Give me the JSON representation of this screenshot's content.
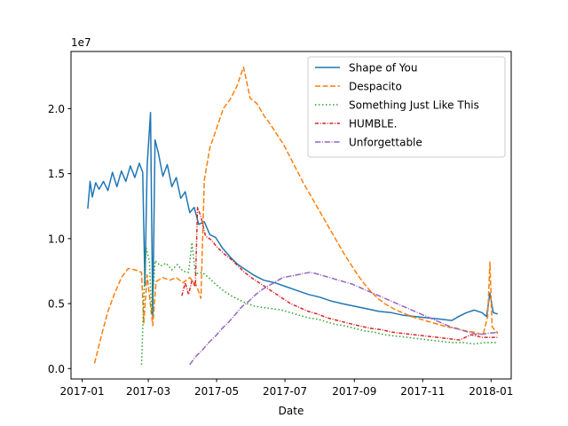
{
  "chart_data": {
    "type": "line",
    "xlabel": "Date",
    "ylabel": "",
    "offset_label": "1e7",
    "x_range": [
      "2016-12-22",
      "2018-01-19"
    ],
    "ylim": [
      -800000,
      24400000
    ],
    "x_ticks": [
      {
        "date": "2017-01-01",
        "label": "2017-01"
      },
      {
        "date": "2017-03-01",
        "label": "2017-03"
      },
      {
        "date": "2017-05-01",
        "label": "2017-05"
      },
      {
        "date": "2017-07-01",
        "label": "2017-07"
      },
      {
        "date": "2017-09-01",
        "label": "2017-09"
      },
      {
        "date": "2017-11-01",
        "label": "2017-11"
      },
      {
        "date": "2018-01-01",
        "label": "2018-01"
      }
    ],
    "y_ticks": [
      {
        "value": 0,
        "label": "0.0"
      },
      {
        "value": 5000000,
        "label": "0.5"
      },
      {
        "value": 10000000,
        "label": "1.0"
      },
      {
        "value": 15000000,
        "label": "1.5"
      },
      {
        "value": 20000000,
        "label": "2.0"
      }
    ],
    "legend_position": "upper-right",
    "series": [
      {
        "name": "Shape of You",
        "color": "#1f77b4",
        "dash": "solid",
        "points": [
          [
            "2017-01-06",
            12300000
          ],
          [
            "2017-01-08",
            14400000
          ],
          [
            "2017-01-10",
            13200000
          ],
          [
            "2017-01-13",
            14300000
          ],
          [
            "2017-01-16",
            13800000
          ],
          [
            "2017-01-20",
            14400000
          ],
          [
            "2017-01-24",
            13700000
          ],
          [
            "2017-01-28",
            15100000
          ],
          [
            "2017-02-01",
            14000000
          ],
          [
            "2017-02-05",
            15200000
          ],
          [
            "2017-02-09",
            14400000
          ],
          [
            "2017-02-13",
            15600000
          ],
          [
            "2017-02-17",
            14700000
          ],
          [
            "2017-02-21",
            15800000
          ],
          [
            "2017-02-24",
            15100000
          ],
          [
            "2017-02-26",
            6400000
          ],
          [
            "2017-02-28",
            15600000
          ],
          [
            "2017-03-03",
            19700000
          ],
          [
            "2017-03-05",
            4000000
          ],
          [
            "2017-03-07",
            17600000
          ],
          [
            "2017-03-10",
            16600000
          ],
          [
            "2017-03-14",
            14800000
          ],
          [
            "2017-03-18",
            15700000
          ],
          [
            "2017-03-22",
            14000000
          ],
          [
            "2017-03-26",
            14700000
          ],
          [
            "2017-03-30",
            13100000
          ],
          [
            "2017-04-03",
            13600000
          ],
          [
            "2017-04-07",
            12000000
          ],
          [
            "2017-04-11",
            12400000
          ],
          [
            "2017-04-15",
            11100000
          ],
          [
            "2017-04-20",
            11300000
          ],
          [
            "2017-04-25",
            10300000
          ],
          [
            "2017-04-30",
            10100000
          ],
          [
            "2017-05-06",
            9300000
          ],
          [
            "2017-05-13",
            8600000
          ],
          [
            "2017-05-20",
            8000000
          ],
          [
            "2017-05-27",
            7600000
          ],
          [
            "2017-06-03",
            7200000
          ],
          [
            "2017-06-12",
            6800000
          ],
          [
            "2017-06-22",
            6600000
          ],
          [
            "2017-07-02",
            6300000
          ],
          [
            "2017-07-12",
            6000000
          ],
          [
            "2017-07-22",
            5700000
          ],
          [
            "2017-08-01",
            5500000
          ],
          [
            "2017-08-11",
            5200000
          ],
          [
            "2017-08-21",
            5000000
          ],
          [
            "2017-09-01",
            4800000
          ],
          [
            "2017-09-12",
            4600000
          ],
          [
            "2017-09-23",
            4400000
          ],
          [
            "2017-10-04",
            4300000
          ],
          [
            "2017-10-15",
            4100000
          ],
          [
            "2017-10-26",
            4000000
          ],
          [
            "2017-11-06",
            3900000
          ],
          [
            "2017-11-17",
            3800000
          ],
          [
            "2017-11-27",
            3700000
          ],
          [
            "2017-12-03",
            4000000
          ],
          [
            "2017-12-10",
            4300000
          ],
          [
            "2017-12-17",
            4500000
          ],
          [
            "2017-12-24",
            4300000
          ],
          [
            "2017-12-28",
            4000000
          ],
          [
            "2017-12-31",
            5800000
          ],
          [
            "2018-01-03",
            4300000
          ],
          [
            "2018-01-07",
            4200000
          ]
        ]
      },
      {
        "name": "Despacito",
        "color": "#ff7f0e",
        "dash": "dashed",
        "points": [
          [
            "2017-01-12",
            400000
          ],
          [
            "2017-01-18",
            2500000
          ],
          [
            "2017-01-24",
            4400000
          ],
          [
            "2017-01-30",
            5800000
          ],
          [
            "2017-02-05",
            7000000
          ],
          [
            "2017-02-11",
            7700000
          ],
          [
            "2017-02-17",
            7600000
          ],
          [
            "2017-02-23",
            7400000
          ],
          [
            "2017-02-25",
            3500000
          ],
          [
            "2017-02-28",
            7200000
          ],
          [
            "2017-03-05",
            3300000
          ],
          [
            "2017-03-08",
            6700000
          ],
          [
            "2017-03-14",
            7000000
          ],
          [
            "2017-03-20",
            6800000
          ],
          [
            "2017-03-26",
            7000000
          ],
          [
            "2017-04-01",
            6600000
          ],
          [
            "2017-04-07",
            7000000
          ],
          [
            "2017-04-13",
            6400000
          ],
          [
            "2017-04-17",
            5400000
          ],
          [
            "2017-04-20",
            14500000
          ],
          [
            "2017-04-25",
            17000000
          ],
          [
            "2017-05-01",
            18500000
          ],
          [
            "2017-05-07",
            20000000
          ],
          [
            "2017-05-13",
            20700000
          ],
          [
            "2017-05-19",
            21700000
          ],
          [
            "2017-05-25",
            23200000
          ],
          [
            "2017-05-31",
            20800000
          ],
          [
            "2017-06-06",
            20400000
          ],
          [
            "2017-06-12",
            19500000
          ],
          [
            "2017-06-18",
            18800000
          ],
          [
            "2017-06-24",
            18000000
          ],
          [
            "2017-06-30",
            17200000
          ],
          [
            "2017-07-06",
            16200000
          ],
          [
            "2017-07-12",
            15200000
          ],
          [
            "2017-07-18",
            14200000
          ],
          [
            "2017-07-24",
            13300000
          ],
          [
            "2017-07-30",
            12400000
          ],
          [
            "2017-08-05",
            11500000
          ],
          [
            "2017-08-11",
            10600000
          ],
          [
            "2017-08-17",
            9700000
          ],
          [
            "2017-08-23",
            8800000
          ],
          [
            "2017-08-29",
            8000000
          ],
          [
            "2017-09-04",
            7200000
          ],
          [
            "2017-09-10",
            6500000
          ],
          [
            "2017-09-16",
            5900000
          ],
          [
            "2017-09-22",
            5400000
          ],
          [
            "2017-09-28",
            5000000
          ],
          [
            "2017-10-06",
            4600000
          ],
          [
            "2017-10-14",
            4300000
          ],
          [
            "2017-10-22",
            4000000
          ],
          [
            "2017-10-30",
            3800000
          ],
          [
            "2017-11-07",
            3600000
          ],
          [
            "2017-11-15",
            3400000
          ],
          [
            "2017-11-23",
            3200000
          ],
          [
            "2017-12-01",
            3100000
          ],
          [
            "2017-12-09",
            2900000
          ],
          [
            "2017-12-17",
            2800000
          ],
          [
            "2017-12-25",
            2600000
          ],
          [
            "2017-12-29",
            4000000
          ],
          [
            "2017-12-31",
            8200000
          ],
          [
            "2018-01-02",
            3200000
          ],
          [
            "2018-01-07",
            2700000
          ]
        ]
      },
      {
        "name": "Something Just Like This",
        "color": "#2ca02c",
        "dash": "dotted",
        "points": [
          [
            "2017-02-23",
            300000
          ],
          [
            "2017-02-25",
            5500000
          ],
          [
            "2017-02-27",
            9300000
          ],
          [
            "2017-03-02",
            8300000
          ],
          [
            "2017-03-04",
            4200000
          ],
          [
            "2017-03-07",
            8300000
          ],
          [
            "2017-03-12",
            7900000
          ],
          [
            "2017-03-17",
            8100000
          ],
          [
            "2017-03-22",
            7600000
          ],
          [
            "2017-03-27",
            8000000
          ],
          [
            "2017-04-01",
            7500000
          ],
          [
            "2017-04-06",
            7400000
          ],
          [
            "2017-04-09",
            9700000
          ],
          [
            "2017-04-12",
            7300000
          ],
          [
            "2017-04-18",
            7400000
          ],
          [
            "2017-04-24",
            7000000
          ],
          [
            "2017-04-30",
            6500000
          ],
          [
            "2017-05-07",
            6000000
          ],
          [
            "2017-05-14",
            5600000
          ],
          [
            "2017-05-21",
            5300000
          ],
          [
            "2017-05-28",
            5000000
          ],
          [
            "2017-06-04",
            4800000
          ],
          [
            "2017-06-12",
            4700000
          ],
          [
            "2017-06-20",
            4600000
          ],
          [
            "2017-06-28",
            4500000
          ],
          [
            "2017-07-06",
            4300000
          ],
          [
            "2017-07-14",
            4100000
          ],
          [
            "2017-07-22",
            3900000
          ],
          [
            "2017-07-30",
            3800000
          ],
          [
            "2017-08-07",
            3600000
          ],
          [
            "2017-08-15",
            3400000
          ],
          [
            "2017-08-23",
            3300000
          ],
          [
            "2017-09-01",
            3100000
          ],
          [
            "2017-09-10",
            2900000
          ],
          [
            "2017-09-19",
            2800000
          ],
          [
            "2017-09-28",
            2600000
          ],
          [
            "2017-10-08",
            2500000
          ],
          [
            "2017-10-18",
            2400000
          ],
          [
            "2017-10-28",
            2300000
          ],
          [
            "2017-11-07",
            2200000
          ],
          [
            "2017-11-17",
            2100000
          ],
          [
            "2017-11-27",
            2000000
          ],
          [
            "2017-12-07",
            2000000
          ],
          [
            "2017-12-17",
            1900000
          ],
          [
            "2017-12-27",
            2000000
          ],
          [
            "2018-01-07",
            2000000
          ]
        ]
      },
      {
        "name": "HUMBLE.",
        "color": "#d62728",
        "dash": "dashdot-fine",
        "points": [
          [
            "2017-03-31",
            5600000
          ],
          [
            "2017-04-03",
            6600000
          ],
          [
            "2017-04-06",
            5700000
          ],
          [
            "2017-04-09",
            6800000
          ],
          [
            "2017-04-12",
            6300000
          ],
          [
            "2017-04-14",
            12400000
          ],
          [
            "2017-04-17",
            11700000
          ],
          [
            "2017-04-21",
            10200000
          ],
          [
            "2017-04-26",
            9900000
          ],
          [
            "2017-05-02",
            9300000
          ],
          [
            "2017-05-08",
            8800000
          ],
          [
            "2017-05-14",
            8400000
          ],
          [
            "2017-05-20",
            7900000
          ],
          [
            "2017-05-26",
            7400000
          ],
          [
            "2017-06-01",
            7000000
          ],
          [
            "2017-06-08",
            6600000
          ],
          [
            "2017-06-15",
            6200000
          ],
          [
            "2017-06-22",
            5800000
          ],
          [
            "2017-06-29",
            5400000
          ],
          [
            "2017-07-06",
            5000000
          ],
          [
            "2017-07-14",
            4700000
          ],
          [
            "2017-07-22",
            4400000
          ],
          [
            "2017-07-30",
            4200000
          ],
          [
            "2017-08-08",
            3900000
          ],
          [
            "2017-08-17",
            3700000
          ],
          [
            "2017-08-26",
            3500000
          ],
          [
            "2017-09-05",
            3300000
          ],
          [
            "2017-09-15",
            3100000
          ],
          [
            "2017-09-25",
            3000000
          ],
          [
            "2017-10-05",
            2800000
          ],
          [
            "2017-10-15",
            2700000
          ],
          [
            "2017-10-25",
            2600000
          ],
          [
            "2017-11-04",
            2500000
          ],
          [
            "2017-11-14",
            2400000
          ],
          [
            "2017-11-24",
            2300000
          ],
          [
            "2017-12-04",
            2200000
          ],
          [
            "2017-12-14",
            2600000
          ],
          [
            "2017-12-24",
            2400000
          ],
          [
            "2018-01-07",
            2400000
          ]
        ]
      },
      {
        "name": "Unforgettable",
        "color": "#9467bd",
        "dash": "dashdot",
        "points": [
          [
            "2017-04-07",
            300000
          ],
          [
            "2017-04-12",
            900000
          ],
          [
            "2017-04-18",
            1400000
          ],
          [
            "2017-04-24",
            2000000
          ],
          [
            "2017-04-30",
            2500000
          ],
          [
            "2017-05-06",
            3100000
          ],
          [
            "2017-05-12",
            3600000
          ],
          [
            "2017-05-18",
            4200000
          ],
          [
            "2017-05-24",
            4800000
          ],
          [
            "2017-05-30",
            5200000
          ],
          [
            "2017-06-05",
            5700000
          ],
          [
            "2017-06-11",
            6100000
          ],
          [
            "2017-06-17",
            6400000
          ],
          [
            "2017-06-23",
            6700000
          ],
          [
            "2017-06-29",
            7000000
          ],
          [
            "2017-07-05",
            7100000
          ],
          [
            "2017-07-11",
            7200000
          ],
          [
            "2017-07-17",
            7300000
          ],
          [
            "2017-07-23",
            7400000
          ],
          [
            "2017-07-29",
            7300000
          ],
          [
            "2017-08-06",
            7100000
          ],
          [
            "2017-08-14",
            6900000
          ],
          [
            "2017-08-22",
            6700000
          ],
          [
            "2017-08-30",
            6500000
          ],
          [
            "2017-09-07",
            6200000
          ],
          [
            "2017-09-15",
            5900000
          ],
          [
            "2017-09-23",
            5600000
          ],
          [
            "2017-10-01",
            5300000
          ],
          [
            "2017-10-09",
            5000000
          ],
          [
            "2017-10-17",
            4700000
          ],
          [
            "2017-10-25",
            4400000
          ],
          [
            "2017-11-02",
            4100000
          ],
          [
            "2017-11-10",
            3800000
          ],
          [
            "2017-11-18",
            3500000
          ],
          [
            "2017-11-26",
            3200000
          ],
          [
            "2017-12-04",
            3000000
          ],
          [
            "2017-12-12",
            2800000
          ],
          [
            "2017-12-20",
            2600000
          ],
          [
            "2017-12-28",
            2700000
          ],
          [
            "2018-01-07",
            2800000
          ]
        ]
      }
    ]
  }
}
